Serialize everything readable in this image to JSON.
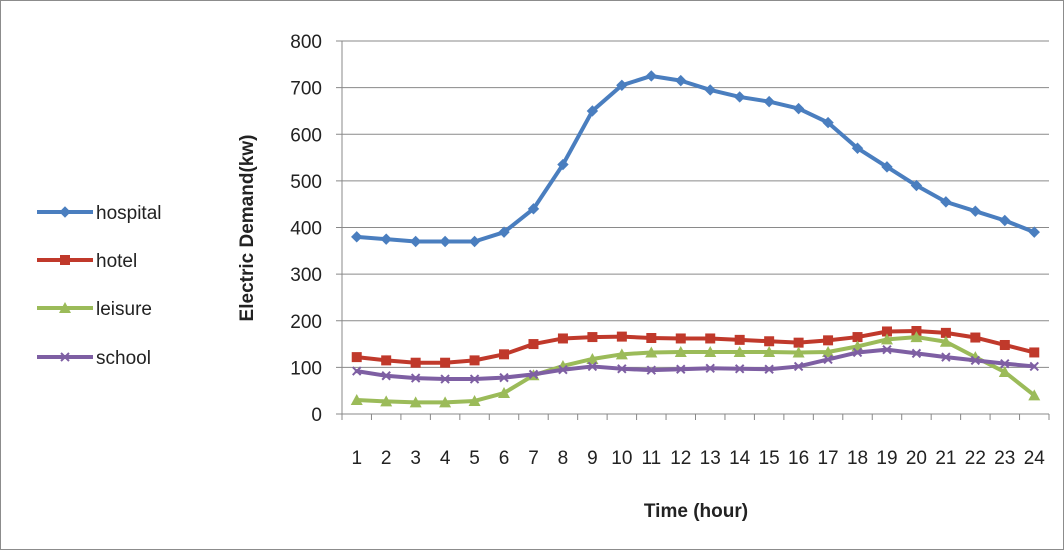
{
  "chart_data": {
    "type": "line",
    "xlabel": "Time (hour)",
    "ylabel": "Electric Demand(kw)",
    "ylim": [
      0,
      800
    ],
    "yticks": [
      0,
      100,
      200,
      300,
      400,
      500,
      600,
      700,
      800
    ],
    "x": [
      1,
      2,
      3,
      4,
      5,
      6,
      7,
      8,
      9,
      10,
      11,
      12,
      13,
      14,
      15,
      16,
      17,
      18,
      19,
      20,
      21,
      22,
      23,
      24
    ],
    "grid": true,
    "legend_position": "left",
    "series": [
      {
        "name": "hospital",
        "color": "#4a7ebf",
        "marker": "diamond",
        "values": [
          380,
          375,
          370,
          370,
          370,
          390,
          440,
          535,
          650,
          705,
          725,
          715,
          695,
          680,
          670,
          655,
          625,
          570,
          530,
          490,
          455,
          435,
          415,
          390
        ]
      },
      {
        "name": "hotel",
        "color": "#c0392b",
        "marker": "square",
        "values": [
          122,
          115,
          110,
          110,
          115,
          128,
          150,
          162,
          165,
          166,
          163,
          162,
          162,
          159,
          156,
          153,
          158,
          165,
          177,
          178,
          174,
          164,
          148,
          132
        ]
      },
      {
        "name": "leisure",
        "color": "#9bbb59",
        "marker": "triangle",
        "values": [
          30,
          27,
          25,
          25,
          28,
          45,
          83,
          103,
          118,
          128,
          132,
          133,
          133,
          133,
          133,
          132,
          133,
          145,
          160,
          165,
          155,
          122,
          90,
          40
        ]
      },
      {
        "name": "school",
        "color": "#7e5fa3",
        "marker": "x",
        "values": [
          92,
          82,
          77,
          75,
          75,
          78,
          85,
          95,
          102,
          97,
          94,
          96,
          98,
          97,
          96,
          102,
          117,
          132,
          138,
          130,
          122,
          115,
          108,
          102
        ]
      }
    ]
  }
}
